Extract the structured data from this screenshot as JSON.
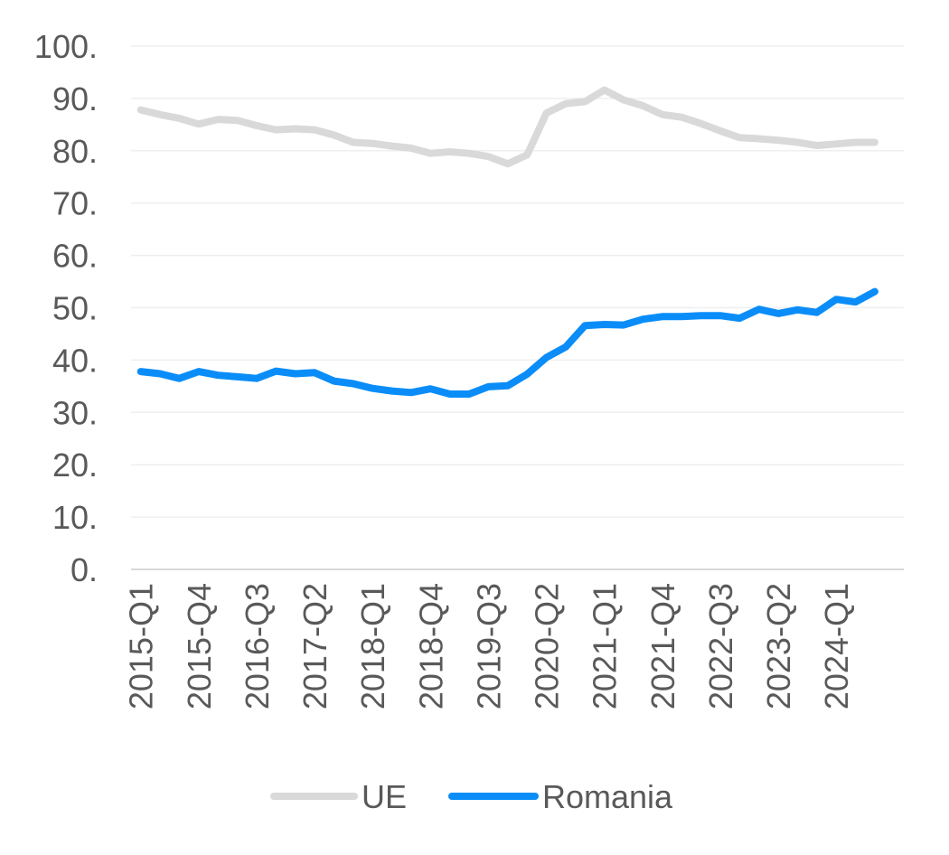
{
  "chart_data": {
    "type": "line",
    "ylim": [
      0,
      100
    ],
    "yticks": [
      0,
      10,
      20,
      30,
      40,
      50,
      60,
      70,
      80,
      90,
      100
    ],
    "ytick_labels": [
      "0.",
      "10.",
      "20.",
      "30.",
      "40.",
      "50.",
      "60.",
      "70.",
      "80.",
      "90.",
      "100."
    ],
    "grid": true,
    "legend_position": "bottom",
    "x": [
      "2015-Q1",
      "2015-Q2",
      "2015-Q3",
      "2015-Q4",
      "2016-Q1",
      "2016-Q2",
      "2016-Q3",
      "2016-Q4",
      "2017-Q1",
      "2017-Q2",
      "2017-Q3",
      "2017-Q4",
      "2018-Q1",
      "2018-Q2",
      "2018-Q3",
      "2018-Q4",
      "2019-Q1",
      "2019-Q2",
      "2019-Q3",
      "2019-Q4",
      "2020-Q1",
      "2020-Q2",
      "2020-Q3",
      "2020-Q4",
      "2021-Q1",
      "2021-Q2",
      "2021-Q3",
      "2021-Q4",
      "2022-Q1",
      "2022-Q2",
      "2022-Q3",
      "2022-Q4",
      "2023-Q1",
      "2023-Q2",
      "2023-Q3",
      "2023-Q4",
      "2024-Q1",
      "2024-Q2",
      "2024-Q3",
      "2024-Q4"
    ],
    "xtick_labels": [
      "2015-Q1",
      "2015-Q4",
      "2016-Q3",
      "2017-Q2",
      "2018-Q1",
      "2018-Q4",
      "2019-Q3",
      "2020-Q2",
      "2021-Q1",
      "2021-Q4",
      "2022-Q3",
      "2023-Q2",
      "2024-Q1"
    ],
    "series": [
      {
        "name": "UE",
        "color": "#d9d9d9",
        "values": [
          87.8,
          86.9,
          86.2,
          85.1,
          86.0,
          85.8,
          84.8,
          84.0,
          84.2,
          84.0,
          83.0,
          81.6,
          81.4,
          80.9,
          80.5,
          79.5,
          79.8,
          79.5,
          78.9,
          77.5,
          79.2,
          87.2,
          89.0,
          89.4,
          91.6,
          89.7,
          88.6,
          86.9,
          86.4,
          85.2,
          83.8,
          82.5,
          82.3,
          82.0,
          81.6,
          81.0,
          81.3,
          81.6,
          81.6,
          null
        ]
      },
      {
        "name": "Romania",
        "color": "#0a8df8",
        "values": [
          37.8,
          37.4,
          36.5,
          37.8,
          37.1,
          36.8,
          36.5,
          37.9,
          37.4,
          37.6,
          36.0,
          35.5,
          34.6,
          34.1,
          33.8,
          34.5,
          33.5,
          33.5,
          34.9,
          35.1,
          37.3,
          40.5,
          42.5,
          46.6,
          46.8,
          46.7,
          47.8,
          48.3,
          48.3,
          48.5,
          48.5,
          48.0,
          49.7,
          48.9,
          49.6,
          49.1,
          51.6,
          51.1,
          53.1,
          null
        ]
      }
    ]
  }
}
